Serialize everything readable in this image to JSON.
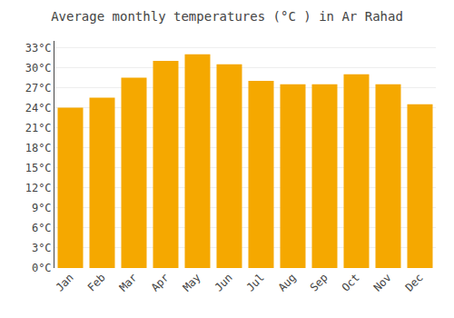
{
  "chart_data": {
    "type": "bar",
    "title": "Average monthly temperatures (°C ) in Ar Rahad",
    "categories": [
      "Jan",
      "Feb",
      "Mar",
      "Apr",
      "May",
      "Jun",
      "Jul",
      "Aug",
      "Sep",
      "Oct",
      "Nov",
      "Dec"
    ],
    "values": [
      24.0,
      25.5,
      28.5,
      31.0,
      32.0,
      30.5,
      28.0,
      27.5,
      27.5,
      29.0,
      27.5,
      24.5
    ],
    "color": "#F5A800",
    "ylim": [
      0,
      34
    ],
    "yticks": [
      {
        "value": 0,
        "label": "0°C"
      },
      {
        "value": 3,
        "label": "3°C"
      },
      {
        "value": 6,
        "label": "6°C"
      },
      {
        "value": 9,
        "label": "9°C"
      },
      {
        "value": 12,
        "label": "12°C"
      },
      {
        "value": 15,
        "label": "15°C"
      },
      {
        "value": 18,
        "label": "18°C"
      },
      {
        "value": 21,
        "label": "21°C"
      },
      {
        "value": 24,
        "label": "24°C"
      },
      {
        "value": 27,
        "label": "27°C"
      },
      {
        "value": 30,
        "label": "30°C"
      },
      {
        "value": 33,
        "label": "33°C"
      }
    ],
    "grid": true
  }
}
